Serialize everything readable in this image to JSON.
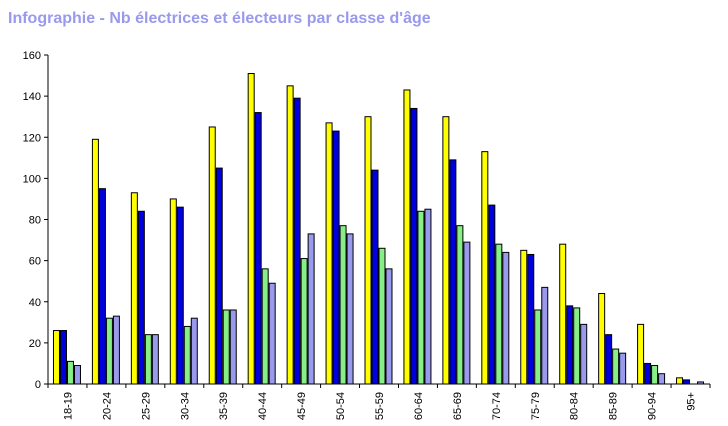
{
  "title": "Infographie - Nb électrices et électeurs par classe d'âge",
  "chart_data": {
    "type": "bar",
    "title": "Infographie - Nb électrices et électeurs par classe d'âge",
    "xlabel": "",
    "ylabel": "",
    "ylim": [
      0,
      160
    ],
    "yticks": [
      "0",
      "20",
      "40",
      "60",
      "80",
      "100",
      "120",
      "140",
      "160"
    ],
    "grid": false,
    "legend": "none",
    "categories": [
      "18-19",
      "20-24",
      "25-29",
      "30-34",
      "35-39",
      "40-44",
      "45-49",
      "50-54",
      "55-59",
      "60-64",
      "65-69",
      "70-74",
      "75-79",
      "80-84",
      "85-89",
      "90-94",
      "95+"
    ],
    "series": [
      {
        "color": "#ffff00",
        "values": [
          26,
          119,
          93,
          90,
          125,
          151,
          145,
          127,
          130,
          143,
          130,
          113,
          65,
          68,
          44,
          29,
          3
        ]
      },
      {
        "color": "#0000dd",
        "values": [
          26,
          95,
          84,
          86,
          105,
          132,
          139,
          123,
          104,
          134,
          109,
          87,
          63,
          38,
          24,
          10,
          2
        ]
      },
      {
        "color": "#88ee88",
        "values": [
          11,
          32,
          24,
          28,
          36,
          56,
          61,
          77,
          66,
          84,
          77,
          68,
          36,
          37,
          17,
          9,
          0
        ]
      },
      {
        "color": "#9999ee",
        "values": [
          9,
          33,
          24,
          32,
          36,
          49,
          73,
          73,
          56,
          85,
          69,
          64,
          47,
          29,
          15,
          5,
          1
        ]
      }
    ]
  }
}
